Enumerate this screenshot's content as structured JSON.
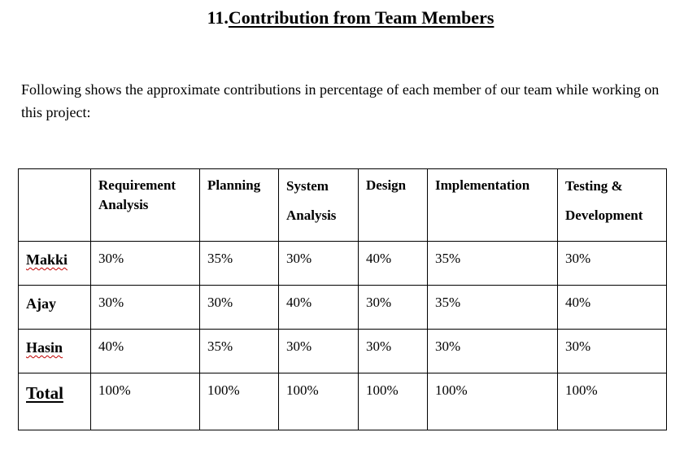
{
  "heading": {
    "number": "11.",
    "title": "Contribution from Team Members"
  },
  "intro": "Following shows the approximate contributions in percentage of each member of our team while working on this project:",
  "table": {
    "columns": [
      "Requirement Analysis",
      "Planning",
      "System Analysis",
      "Design",
      "Implementation",
      "Testing & Development"
    ],
    "rows": [
      {
        "name": "Makki",
        "values": [
          "30%",
          "35%",
          "30%",
          "40%",
          "35%",
          "30%"
        ]
      },
      {
        "name": "Ajay",
        "values": [
          "30%",
          "30%",
          "40%",
          "30%",
          "35%",
          "40%"
        ]
      },
      {
        "name": "Hasin",
        "values": [
          "40%",
          "35%",
          "30%",
          "30%",
          "30%",
          "30%"
        ]
      }
    ],
    "total": {
      "name": "Total",
      "values": [
        "100%",
        "100%",
        "100%",
        "100%",
        "100%",
        "100%"
      ]
    }
  }
}
